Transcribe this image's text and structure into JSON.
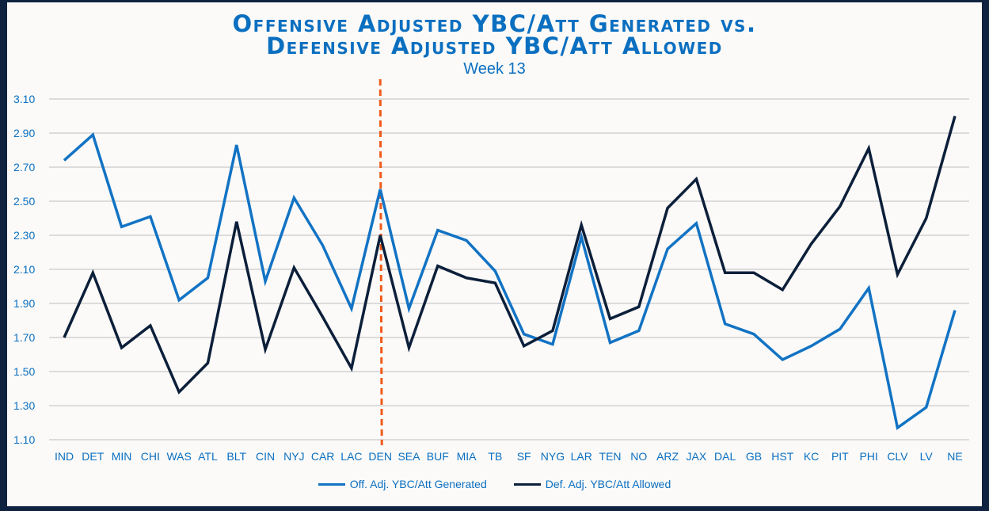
{
  "chart_data": {
    "type": "line",
    "title": "Offensive Adjusted YBC/Att Generated vs. Defensive Adjusted YBC/Att Allowed",
    "title_lines": [
      "Offensive Adjusted YBC/Att Generated vs.",
      "Defensive Adjusted YBC/Att Allowed"
    ],
    "subtitle": "Week 13",
    "xlabel": "",
    "ylabel": "",
    "ylim": [
      1.1,
      3.1
    ],
    "yticks": [
      "1.10",
      "1.30",
      "1.50",
      "1.70",
      "1.90",
      "2.10",
      "2.30",
      "2.50",
      "2.70",
      "2.90",
      "3.10"
    ],
    "grid": true,
    "legend_position": "bottom",
    "categories": [
      "IND",
      "DET",
      "MIN",
      "CHI",
      "WAS",
      "ATL",
      "BLT",
      "CIN",
      "NYJ",
      "CAR",
      "LAC",
      "DEN",
      "SEA",
      "BUF",
      "MIA",
      "TB",
      "SF",
      "NYG",
      "LAR",
      "TEN",
      "NO",
      "ARZ",
      "JAX",
      "DAL",
      "GB",
      "HST",
      "KC",
      "PIT",
      "PHI",
      "CLV",
      "LV",
      "NE"
    ],
    "series": [
      {
        "name": "Off. Adj. YBC/Att Generated",
        "color": "#1273c4",
        "values": [
          2.74,
          2.89,
          2.35,
          2.41,
          1.92,
          2.05,
          2.83,
          2.03,
          2.52,
          2.24,
          1.87,
          2.57,
          1.87,
          2.33,
          2.27,
          2.09,
          1.72,
          1.66,
          2.29,
          1.67,
          1.74,
          2.22,
          2.37,
          1.78,
          1.72,
          1.57,
          1.65,
          1.75,
          1.99,
          1.17,
          1.29,
          1.86
        ]
      },
      {
        "name": "Def. Adj. YBC/Att Allowed",
        "color": "#0c1f3a",
        "values": [
          1.7,
          2.08,
          1.64,
          1.77,
          1.38,
          1.55,
          2.38,
          1.63,
          2.11,
          1.82,
          1.52,
          2.3,
          1.64,
          2.12,
          2.05,
          2.02,
          1.65,
          1.74,
          2.36,
          1.81,
          1.88,
          2.46,
          2.63,
          2.08,
          2.08,
          1.98,
          2.25,
          2.47,
          2.81,
          2.07,
          2.4,
          3.0
        ]
      }
    ],
    "annotations": [
      {
        "type": "vertical-dashed-line",
        "at": "DEN",
        "color": "#f05a1a"
      }
    ],
    "axis_color": "#0b6fc0",
    "grid_color": "#dcdcdc"
  }
}
